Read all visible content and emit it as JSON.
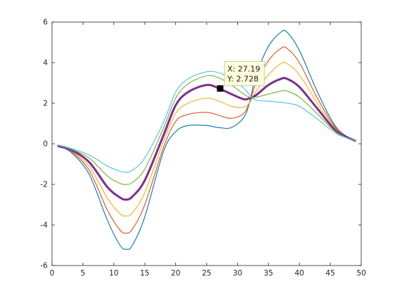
{
  "chart_data": {
    "type": "line",
    "title": "",
    "xlabel": "",
    "ylabel": "",
    "xlim": [
      0,
      50
    ],
    "ylim": [
      -6,
      6
    ],
    "xticks": [
      0,
      5,
      10,
      15,
      20,
      25,
      30,
      35,
      40,
      45,
      50
    ],
    "yticks": [
      -6,
      -4,
      -2,
      0,
      2,
      4,
      6
    ],
    "xtick_labels": [
      "0",
      "5",
      "10",
      "15",
      "20",
      "25",
      "30",
      "35",
      "40",
      "45",
      "50"
    ],
    "ytick_labels": [
      "-6",
      "-4",
      "-2",
      "0",
      "2",
      "4",
      "6"
    ],
    "grid": false,
    "x": [
      1,
      3,
      6,
      9,
      11,
      12,
      13,
      15,
      18,
      20,
      22,
      25,
      27,
      29,
      31,
      32,
      33,
      35,
      37,
      38,
      40,
      43,
      46,
      49
    ],
    "series": [
      {
        "color": "#0072bd",
        "highlight": false,
        "values": [
          -0.15,
          -0.4,
          -1.5,
          -3.8,
          -5.0,
          -5.2,
          -5.0,
          -3.6,
          -0.4,
          0.6,
          0.9,
          0.9,
          0.8,
          0.8,
          1.3,
          2.1,
          3.4,
          4.8,
          5.5,
          5.5,
          4.6,
          2.5,
          0.8,
          0.15
        ]
      },
      {
        "color": "#d95319",
        "highlight": false,
        "values": [
          -0.13,
          -0.35,
          -1.3,
          -3.3,
          -4.25,
          -4.4,
          -4.2,
          -3.0,
          -0.2,
          1.1,
          1.45,
          1.55,
          1.4,
          1.25,
          1.5,
          2.1,
          3.0,
          4.1,
          4.7,
          4.7,
          4.0,
          2.2,
          0.75,
          0.15
        ]
      },
      {
        "color": "#edb120",
        "highlight": false,
        "values": [
          -0.12,
          -0.32,
          -1.1,
          -2.7,
          -3.45,
          -3.55,
          -3.4,
          -2.4,
          0.1,
          1.5,
          2.0,
          2.25,
          2.1,
          1.85,
          1.8,
          2.05,
          2.6,
          3.4,
          3.95,
          3.95,
          3.4,
          1.95,
          0.7,
          0.15
        ]
      },
      {
        "color": "#7e2f8e",
        "highlight": true,
        "values": [
          -0.1,
          -0.28,
          -0.9,
          -2.15,
          -2.65,
          -2.75,
          -2.6,
          -1.8,
          0.4,
          1.9,
          2.55,
          2.9,
          2.728,
          2.45,
          2.2,
          2.25,
          2.4,
          2.9,
          3.2,
          3.2,
          2.8,
          1.7,
          0.62,
          0.15
        ]
      },
      {
        "color": "#77ac30",
        "highlight": false,
        "values": [
          -0.09,
          -0.25,
          -0.7,
          -1.6,
          -1.95,
          -2.0,
          -1.9,
          -1.25,
          0.75,
          2.25,
          2.95,
          3.35,
          3.25,
          2.9,
          2.45,
          2.3,
          2.3,
          2.45,
          2.6,
          2.6,
          2.3,
          1.45,
          0.55,
          0.15
        ]
      },
      {
        "color": "#4dbeee",
        "highlight": false,
        "values": [
          -0.08,
          -0.22,
          -0.55,
          -1.1,
          -1.35,
          -1.4,
          -1.3,
          -0.7,
          1.05,
          2.55,
          3.2,
          3.55,
          3.5,
          3.2,
          2.75,
          2.4,
          2.15,
          2.1,
          2.05,
          2.0,
          1.85,
          1.2,
          0.5,
          0.15
        ]
      }
    ],
    "datatip": {
      "x": 27.19,
      "y": 2.728,
      "x_text": "X: 27.19",
      "y_text": "Y: 2.728"
    }
  }
}
